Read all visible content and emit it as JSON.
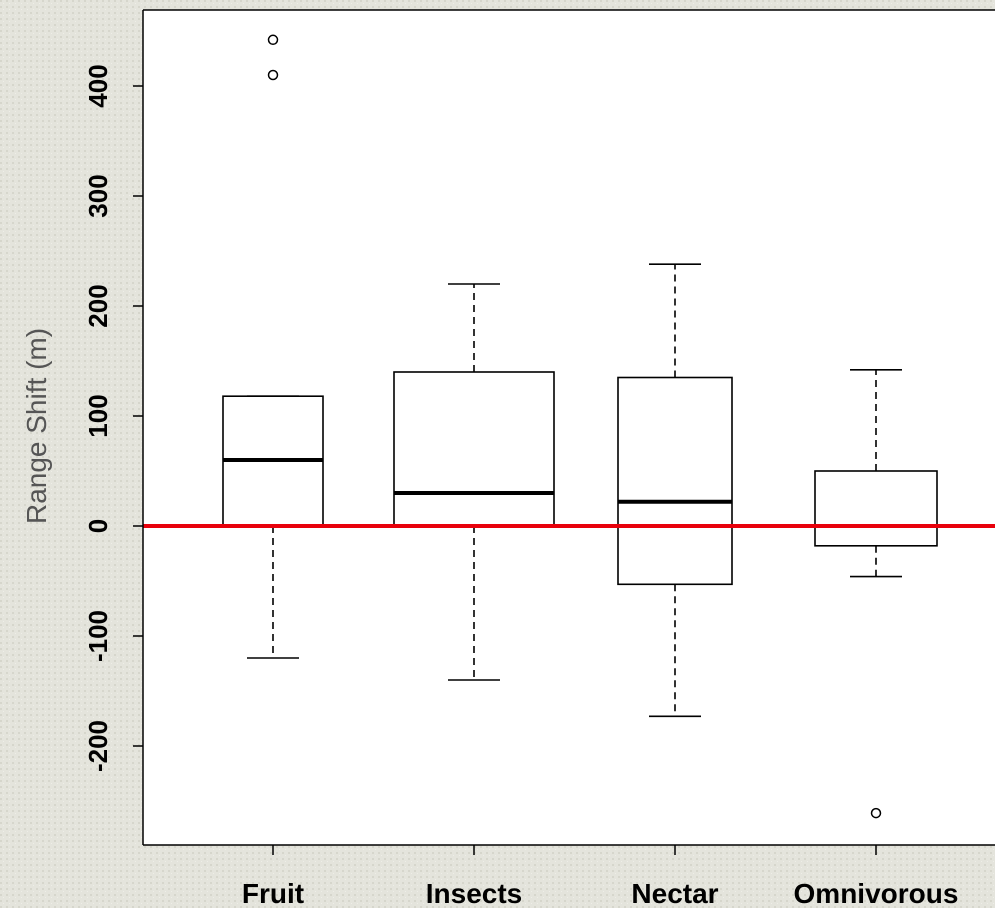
{
  "chart_data": {
    "type": "box",
    "ylabel": "Range Shift (m)",
    "xlabel": "",
    "ylim": [
      -290,
      470
    ],
    "yticks": [
      -200,
      -100,
      0,
      100,
      200,
      300,
      400
    ],
    "categories": [
      "Fruit",
      "Insects",
      "Nectar",
      "Omnivorous"
    ],
    "boxes": [
      {
        "category": "Fruit",
        "whisker_low": -120,
        "q1": 0,
        "median": 60,
        "q3": 118,
        "whisker_high": 118,
        "outliers": [
          410,
          442
        ]
      },
      {
        "category": "Insects",
        "whisker_low": -140,
        "q1": 0,
        "median": 30,
        "q3": 140,
        "whisker_high": 220,
        "outliers": []
      },
      {
        "category": "Nectar",
        "whisker_low": -173,
        "q1": -53,
        "median": 22,
        "q3": 135,
        "whisker_high": 238,
        "outliers": []
      },
      {
        "category": "Omnivorous",
        "whisker_low": -46,
        "q1": -18,
        "median": 0,
        "q3": 50,
        "whisker_high": 142,
        "outliers": [
          -261
        ]
      }
    ],
    "reference_line": {
      "y": 0,
      "color": "#e8000b"
    }
  }
}
